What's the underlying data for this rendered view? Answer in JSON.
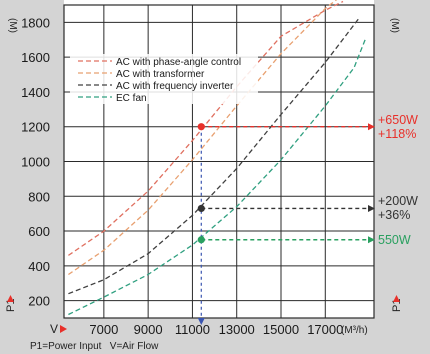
{
  "chart_data": {
    "type": "line",
    "x_axis": {
      "range": [
        5200,
        19200
      ],
      "ticks": [
        7000,
        9000,
        11000,
        13000,
        15000,
        17000
      ],
      "tick_labels": [
        "7000",
        "9000",
        "11000",
        "13000",
        "15000",
        "17000"
      ],
      "unit_label": "(M³/h)",
      "symbol": "V"
    },
    "y_axis": {
      "range": [
        100,
        1900
      ],
      "ticks": [
        200,
        400,
        600,
        800,
        1000,
        1200,
        1400,
        1600,
        1800
      ],
      "tick_labels": [
        "200",
        "400",
        "600",
        "800",
        "1000",
        "1200",
        "1400",
        "1600",
        "1800"
      ],
      "unit_label": "(M)",
      "right_unit_label": "(M)",
      "symbol": "P1",
      "right_symbol": "P1"
    },
    "grid": true,
    "legend_position": "top-left",
    "series": [
      {
        "name": "AC with phase-angle control",
        "color": "#e07060",
        "x": [
          5400,
          7000,
          9000,
          11000,
          13000,
          15000,
          17000,
          17800
        ],
        "y": [
          460,
          600,
          830,
          1120,
          1430,
          1720,
          1870,
          1920
        ]
      },
      {
        "name": "AC with transformer",
        "color": "#e8a070",
        "x": [
          5400,
          7000,
          9000,
          11000,
          13000,
          15000,
          17000,
          17800
        ],
        "y": [
          350,
          490,
          720,
          1010,
          1320,
          1620,
          1880,
          1960
        ]
      },
      {
        "name": "AC with frequency inverter",
        "color": "#404040",
        "x": [
          5400,
          7000,
          9000,
          11000,
          13000,
          15000,
          17000,
          18500
        ],
        "y": [
          240,
          320,
          470,
          690,
          960,
          1270,
          1570,
          1820
        ]
      },
      {
        "name": "EC fan",
        "color": "#30a080",
        "x": [
          5400,
          7000,
          9000,
          11000,
          13000,
          15000,
          17000,
          18300,
          18800
        ],
        "y": [
          120,
          220,
          350,
          520,
          740,
          1010,
          1320,
          1540,
          1700
        ]
      }
    ],
    "reference_x": 11400,
    "markers": [
      {
        "x": 11400,
        "y": 1200,
        "color": "#e8302a",
        "label_lines": [
          "+650W",
          "+118%"
        ]
      },
      {
        "x": 11400,
        "y": 730,
        "color": "#333333",
        "label_lines": [
          "+200W",
          "+36%"
        ]
      },
      {
        "x": 11400,
        "y": 550,
        "color": "#2aa060",
        "label_lines": [
          "550W"
        ]
      }
    ],
    "footnote": "P1=Power Input   V=Air Flow"
  }
}
